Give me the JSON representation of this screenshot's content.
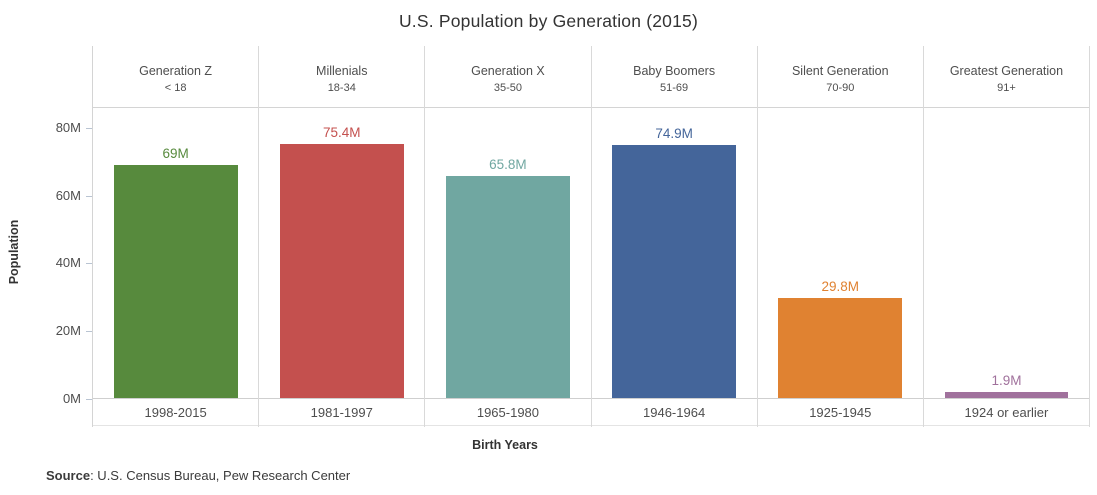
{
  "chart_data": {
    "type": "bar",
    "title": "U.S. Population by Generation (2015)",
    "xlabel": "Birth Years",
    "ylabel": "Population",
    "ylim": [
      0,
      86
    ],
    "yticks": [
      0,
      20,
      40,
      60,
      80
    ],
    "ytick_labels": [
      "0M",
      "20M",
      "40M",
      "60M",
      "80M"
    ],
    "grid": false,
    "legend": "none",
    "columns": [
      {
        "generation": "Generation Z",
        "age_range": "< 18",
        "birth_years": "1998-2015",
        "value": 69,
        "label": "69M",
        "color": "#578a3d"
      },
      {
        "generation": "Millenials",
        "age_range": "18-34",
        "birth_years": "1981-1997",
        "value": 75.4,
        "label": "75.4M",
        "color": "#c4504e"
      },
      {
        "generation": "Generation X",
        "age_range": "35-50",
        "birth_years": "1965-1980",
        "value": 65.8,
        "label": "65.8M",
        "color": "#70a7a1"
      },
      {
        "generation": "Baby Boomers",
        "age_range": "51-69",
        "birth_years": "1946-1964",
        "value": 74.9,
        "label": "74.9M",
        "color": "#44659a"
      },
      {
        "generation": "Silent Generation",
        "age_range": "70-90",
        "birth_years": "1925-1945",
        "value": 29.8,
        "label": "29.8M",
        "color": "#e08231"
      },
      {
        "generation": "Greatest Generation",
        "age_range": "91+",
        "birth_years": "1924 or earlier",
        "value": 1.9,
        "label": "1.9M",
        "color": "#a0719c"
      }
    ]
  },
  "footer": {
    "source_label": "Source",
    "source_text": ":  U.S. Census Bureau, Pew Research Center"
  }
}
